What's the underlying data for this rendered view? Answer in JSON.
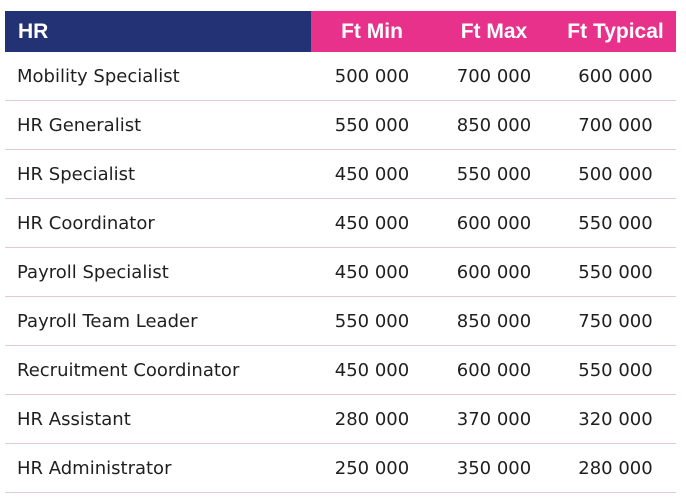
{
  "header": {
    "role": "HR",
    "min": "Ft Min",
    "max": "Ft Max",
    "typical": "Ft Typical"
  },
  "accent_colors": {
    "navy": "#233275",
    "pink": "#e8318a"
  },
  "rows": [
    {
      "role": "Mobility Specialist",
      "min": "500 000",
      "max": "700 000",
      "typical": "600 000"
    },
    {
      "role": "HR Generalist",
      "min": "550 000",
      "max": "850 000",
      "typical": "700 000"
    },
    {
      "role": "HR Specialist",
      "min": "450 000",
      "max": "550 000",
      "typical": "500 000"
    },
    {
      "role": "HR Coordinator",
      "min": "450 000",
      "max": "600 000",
      "typical": "550 000"
    },
    {
      "role": "Payroll Specialist",
      "min": "450 000",
      "max": "600 000",
      "typical": "550 000"
    },
    {
      "role": "Payroll Team Leader",
      "min": "550 000",
      "max": "850 000",
      "typical": "750 000"
    },
    {
      "role": "Recruitment Coordinator",
      "min": "450 000",
      "max": "600 000",
      "typical": "550 000"
    },
    {
      "role": "HR Assistant",
      "min": "280 000",
      "max": "370 000",
      "typical": "320 000"
    },
    {
      "role": "HR Administrator",
      "min": "250 000",
      "max": "350 000",
      "typical": "280 000"
    }
  ]
}
